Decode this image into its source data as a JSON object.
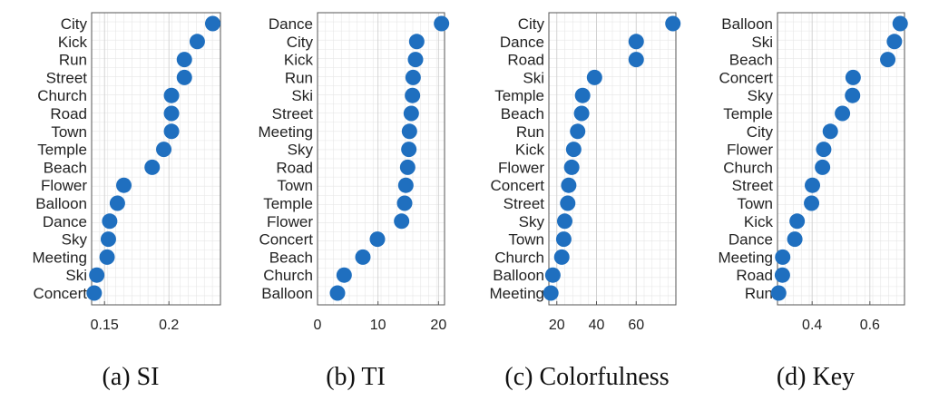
{
  "chart_data": [
    {
      "type": "scatter",
      "caption": "(a) SI",
      "categories": [
        "City",
        "Kick",
        "Run",
        "Street",
        "Church",
        "Road",
        "Town",
        "Temple",
        "Beach",
        "Flower",
        "Balloon",
        "Dance",
        "Sky",
        "Meeting",
        "Ski",
        "Concert"
      ],
      "values": [
        0.234,
        0.222,
        0.212,
        0.212,
        0.202,
        0.202,
        0.202,
        0.196,
        0.187,
        0.165,
        0.16,
        0.154,
        0.153,
        0.152,
        0.144,
        0.142
      ],
      "xlim": [
        0.14,
        0.24
      ],
      "xticks": [
        0.15,
        0.2
      ],
      "xtick_labels": [
        "0.15",
        "0.2"
      ],
      "color": "#1f6fbf",
      "grid": true
    },
    {
      "type": "scatter",
      "caption": "(b) TI",
      "categories": [
        "Dance",
        "City",
        "Kick",
        "Run",
        "Ski",
        "Street",
        "Meeting",
        "Sky",
        "Road",
        "Town",
        "Temple",
        "Flower",
        "Concert",
        "Beach",
        "Church",
        "Balloon"
      ],
      "values": [
        20.5,
        16.4,
        16.2,
        15.8,
        15.7,
        15.5,
        15.2,
        15.1,
        14.9,
        14.6,
        14.4,
        13.9,
        9.9,
        7.5,
        4.4,
        3.3
      ],
      "xlim": [
        0,
        21
      ],
      "xticks": [
        0,
        10,
        20
      ],
      "xtick_labels": [
        "0",
        "10",
        "20"
      ],
      "color": "#1f6fbf",
      "grid": true
    },
    {
      "type": "scatter",
      "caption": "(c) Colorfulness",
      "categories": [
        "City",
        "Dance",
        "Road",
        "Ski",
        "Temple",
        "Beach",
        "Run",
        "Kick",
        "Flower",
        "Concert",
        "Street",
        "Sky",
        "Town",
        "Church",
        "Balloon",
        "Meeting"
      ],
      "values": [
        78.5,
        60,
        60,
        39,
        33,
        32.5,
        30.5,
        28.5,
        27.5,
        26,
        25.5,
        24,
        23.5,
        22.5,
        18,
        17
      ],
      "xlim": [
        16,
        80
      ],
      "xticks": [
        20,
        40,
        60
      ],
      "xtick_labels": [
        "20",
        "40",
        "60"
      ],
      "color": "#1f6fbf",
      "grid": true
    },
    {
      "type": "scatter",
      "caption": "(d) Key",
      "categories": [
        "Balloon",
        "Ski",
        "Beach",
        "Concert",
        "Sky",
        "Temple",
        "City",
        "Flower",
        "Church",
        "Street",
        "Town",
        "Kick",
        "Dance",
        "Meeting",
        "Road",
        "Run"
      ],
      "values": [
        0.705,
        0.685,
        0.662,
        0.542,
        0.54,
        0.505,
        0.463,
        0.44,
        0.436,
        0.401,
        0.398,
        0.348,
        0.34,
        0.298,
        0.297,
        0.284
      ],
      "xlim": [
        0.28,
        0.72
      ],
      "xticks": [
        0.4,
        0.6
      ],
      "xtick_labels": [
        "0.4",
        "0.6"
      ],
      "color": "#1f6fbf",
      "grid": true
    }
  ]
}
